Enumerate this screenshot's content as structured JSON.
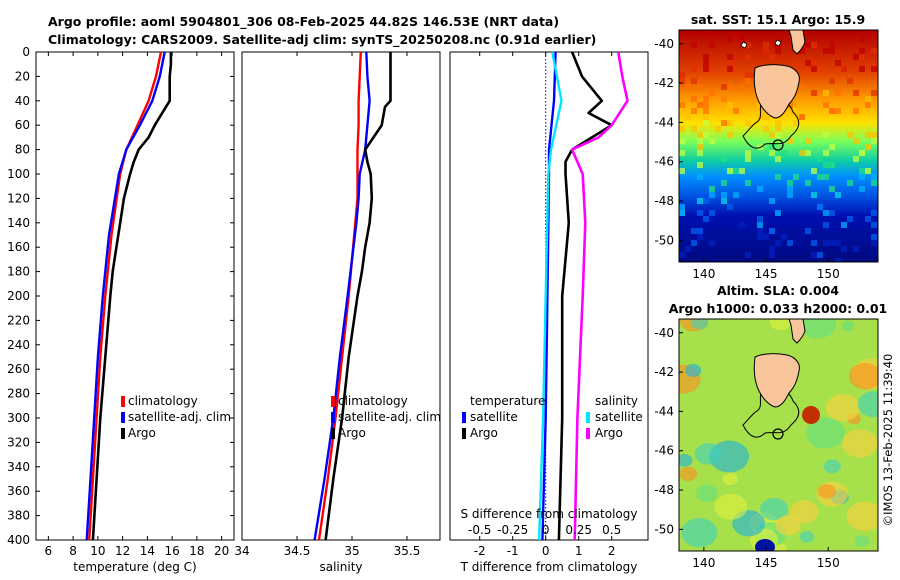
{
  "header": {
    "line1": "Argo profile: aoml 5904801_306 08-Feb-2025 44.82S 146.53E (NRT data)",
    "line2": "Climatology: CARS2009. Satellite-adj clim: synTS_20250208.nc (0.91d earlier)"
  },
  "colors": {
    "argo": "#000000",
    "clim": "#ff0000",
    "sat": "#0000ff",
    "sat_s": "#00e5ff",
    "argo_s": "#ff00ff",
    "land": "#f9c59a"
  },
  "chart_data": [
    {
      "id": "temperature",
      "type": "line",
      "xlabel": "temperature (deg C)",
      "ylabel": "",
      "xlim": [
        5,
        21
      ],
      "ylim": [
        400,
        0
      ],
      "xticks": [
        6,
        8,
        10,
        12,
        14,
        16,
        18,
        20
      ],
      "yticks": [
        0,
        20,
        40,
        60,
        80,
        100,
        120,
        140,
        160,
        180,
        200,
        220,
        240,
        260,
        280,
        300,
        320,
        340,
        360,
        380,
        400
      ],
      "legend": {
        "position": "lower-right",
        "entries": [
          "climatology",
          "satellite-adj. clim",
          "Argo"
        ]
      },
      "series": [
        {
          "name": "climatology",
          "color": "#ff0000",
          "depth": [
            0,
            20,
            40,
            60,
            80,
            100,
            150,
            200,
            250,
            300,
            350,
            400
          ],
          "values": [
            15.1,
            14.7,
            14.1,
            13.2,
            12.3,
            11.8,
            11.1,
            10.6,
            10.2,
            9.9,
            9.6,
            9.3
          ]
        },
        {
          "name": "satellite-adj. clim",
          "color": "#0000ff",
          "depth": [
            0,
            20,
            40,
            60,
            80,
            100,
            150,
            200,
            250,
            300,
            350,
            400
          ],
          "values": [
            15.4,
            15.0,
            14.4,
            13.4,
            12.3,
            11.7,
            10.9,
            10.4,
            10.0,
            9.7,
            9.4,
            9.1
          ]
        },
        {
          "name": "Argo",
          "color": "#000000",
          "depth": [
            0,
            10,
            20,
            30,
            40,
            50,
            60,
            70,
            80,
            90,
            100,
            120,
            140,
            160,
            180,
            200,
            250,
            300,
            350,
            400
          ],
          "values": [
            15.9,
            15.9,
            15.8,
            15.8,
            15.8,
            15.2,
            14.6,
            14.1,
            13.3,
            12.9,
            12.6,
            12.1,
            11.8,
            11.5,
            11.2,
            11.0,
            10.6,
            10.2,
            9.9,
            9.6
          ]
        }
      ]
    },
    {
      "id": "salinity",
      "type": "line",
      "xlabel": "salinity",
      "ylabel": "",
      "xlim": [
        34,
        35.8
      ],
      "ylim": [
        400,
        0
      ],
      "xticks": [
        34,
        34.5,
        35,
        35.5
      ],
      "xtick_labels": [
        "34",
        "34.5",
        "35",
        "35.5"
      ],
      "legend": {
        "position": "lower-right",
        "entries": [
          "climatology",
          "satellite-adj. clim",
          "Argo"
        ]
      },
      "series": [
        {
          "name": "climatology",
          "color": "#ff0000",
          "depth": [
            0,
            20,
            40,
            60,
            80,
            100,
            120,
            140,
            200,
            250,
            300,
            350,
            400
          ],
          "values": [
            35.08,
            35.07,
            35.06,
            35.06,
            35.05,
            35.05,
            35.05,
            35.03,
            34.97,
            34.91,
            34.85,
            34.78,
            34.7
          ]
        },
        {
          "name": "satellite-adj. clim",
          "color": "#0000ff",
          "depth": [
            0,
            20,
            40,
            60,
            80,
            100,
            120,
            140,
            200,
            250,
            300,
            350,
            400
          ],
          "values": [
            35.13,
            35.14,
            35.16,
            35.14,
            35.12,
            35.07,
            35.06,
            35.04,
            34.96,
            34.89,
            34.83,
            34.75,
            34.66
          ]
        },
        {
          "name": "Argo",
          "color": "#000000",
          "depth": [
            0,
            20,
            40,
            45,
            60,
            80,
            90,
            100,
            120,
            140,
            160,
            180,
            200,
            250,
            300,
            350,
            400
          ],
          "values": [
            35.35,
            35.35,
            35.35,
            35.3,
            35.27,
            35.12,
            35.14,
            35.17,
            35.18,
            35.16,
            35.12,
            35.09,
            35.05,
            34.97,
            34.91,
            34.83,
            34.76
          ]
        }
      ]
    },
    {
      "id": "difference",
      "type": "line",
      "xlabel": "T difference from climatology",
      "xlabel_top": "S difference from climatology",
      "xlim": [
        -2.9,
        3.1
      ],
      "ylim": [
        400,
        0
      ],
      "xticks": [
        -2,
        -1,
        0,
        1,
        2
      ],
      "xticks_s": [
        -0.5,
        -0.25,
        0,
        0.25,
        0.5
      ],
      "xtick_s_labels": [
        "-0.5",
        "-0.25",
        "0",
        "0.25",
        "0.5"
      ],
      "legend_temperature": {
        "title": "temperature",
        "entries": [
          "satellite",
          "Argo"
        ]
      },
      "legend_salinity": {
        "title": "salinity",
        "entries": [
          "satellite",
          "Argo"
        ]
      },
      "series": [
        {
          "name": "temperature satellite",
          "color": "#0000ff",
          "depth": [
            0,
            40,
            80,
            100,
            200,
            300,
            400
          ],
          "values": [
            0.3,
            0.25,
            0.1,
            0.1,
            0.05,
            0.0,
            -0.1
          ]
        },
        {
          "name": "temperature Argo",
          "color": "#000000",
          "depth": [
            0,
            20,
            40,
            50,
            60,
            80,
            90,
            100,
            140,
            200,
            300,
            400
          ],
          "values": [
            0.8,
            1.1,
            1.7,
            1.3,
            2.0,
            0.8,
            0.6,
            0.6,
            0.7,
            0.5,
            0.5,
            0.4
          ]
        },
        {
          "name": "salinity satellite",
          "color": "#00e5ff",
          "depth": [
            0,
            40,
            80,
            100,
            200,
            300,
            400
          ],
          "values": [
            0.05,
            0.12,
            0.04,
            0.02,
            0.0,
            -0.02,
            -0.05
          ]
        },
        {
          "name": "salinity Argo",
          "color": "#ff00ff",
          "depth": [
            0,
            20,
            40,
            60,
            70,
            80,
            100,
            140,
            200,
            300,
            400
          ],
          "values": [
            0.55,
            0.58,
            0.62,
            0.5,
            0.4,
            0.2,
            0.28,
            0.3,
            0.28,
            0.24,
            0.22
          ]
        }
      ]
    }
  ],
  "maps": {
    "sst": {
      "title": "sat. SST: 15.1 Argo: 15.9",
      "xlabel_ticks": [
        "140",
        "145",
        "150"
      ],
      "ylabel_ticks": [
        "-40",
        "-42",
        "-44",
        "-46",
        "-48",
        "-50"
      ],
      "lon": [
        138,
        154
      ],
      "lat": [
        -51.1,
        -39.3
      ],
      "colormap": "jet",
      "argo_marker": [
        146.53,
        -44.82
      ]
    },
    "sla": {
      "title1": "Altim. SLA: 0.004",
      "title2": "Argo h1000: 0.033 h2000: 0.01",
      "xlabel_ticks": [
        "140",
        "145",
        "150"
      ],
      "ylabel_ticks": [
        "-40",
        "-42",
        "-44",
        "-46",
        "-48",
        "-50"
      ],
      "lon": [
        138,
        154
      ],
      "lat": [
        -51.1,
        -39.3
      ],
      "colormap": "jet",
      "argo_marker": [
        146.53,
        -44.82
      ]
    }
  },
  "credit": "©IMOS 13-Feb-2025 11:39:40"
}
